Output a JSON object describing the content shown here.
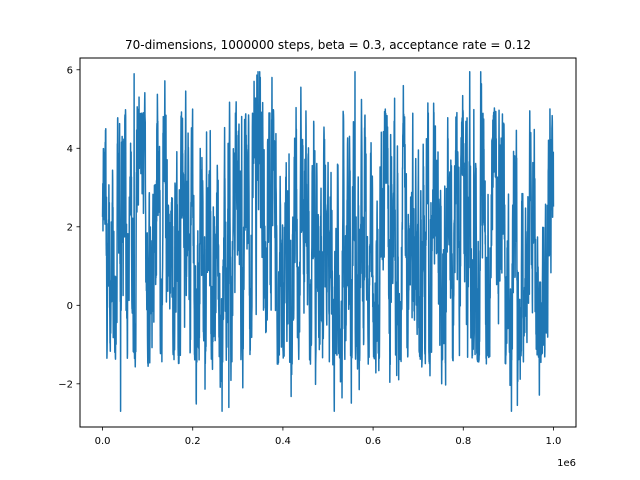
{
  "chart_data": {
    "type": "line",
    "title": "70-dimensions, 1000000 steps, beta = 0.3, acceptance rate = 0.12",
    "xlabel": "",
    "ylabel": "",
    "x_offset_label": "1e6",
    "xlim": [
      -50000,
      1050000
    ],
    "ylim": [
      -3.1,
      6.3
    ],
    "x_ticks": [
      0,
      200000,
      400000,
      600000,
      800000,
      1000000
    ],
    "x_tick_labels": [
      "0.0",
      "0.2",
      "0.4",
      "0.6",
      "0.8",
      "1.0"
    ],
    "y_ticks": [
      -2,
      0,
      2,
      4,
      6
    ],
    "y_tick_labels": [
      "−2",
      "0",
      "2",
      "4",
      "6"
    ],
    "grid": false,
    "legend": "none",
    "series_color": "#1f77b4",
    "series": [
      {
        "x": [
          0,
          1000000
        ],
        "y_typical_range": [
          -1.5,
          5.0
        ],
        "y_min": -2.7,
        "y_max": 5.95,
        "steps": 1000000
      }
    ]
  }
}
